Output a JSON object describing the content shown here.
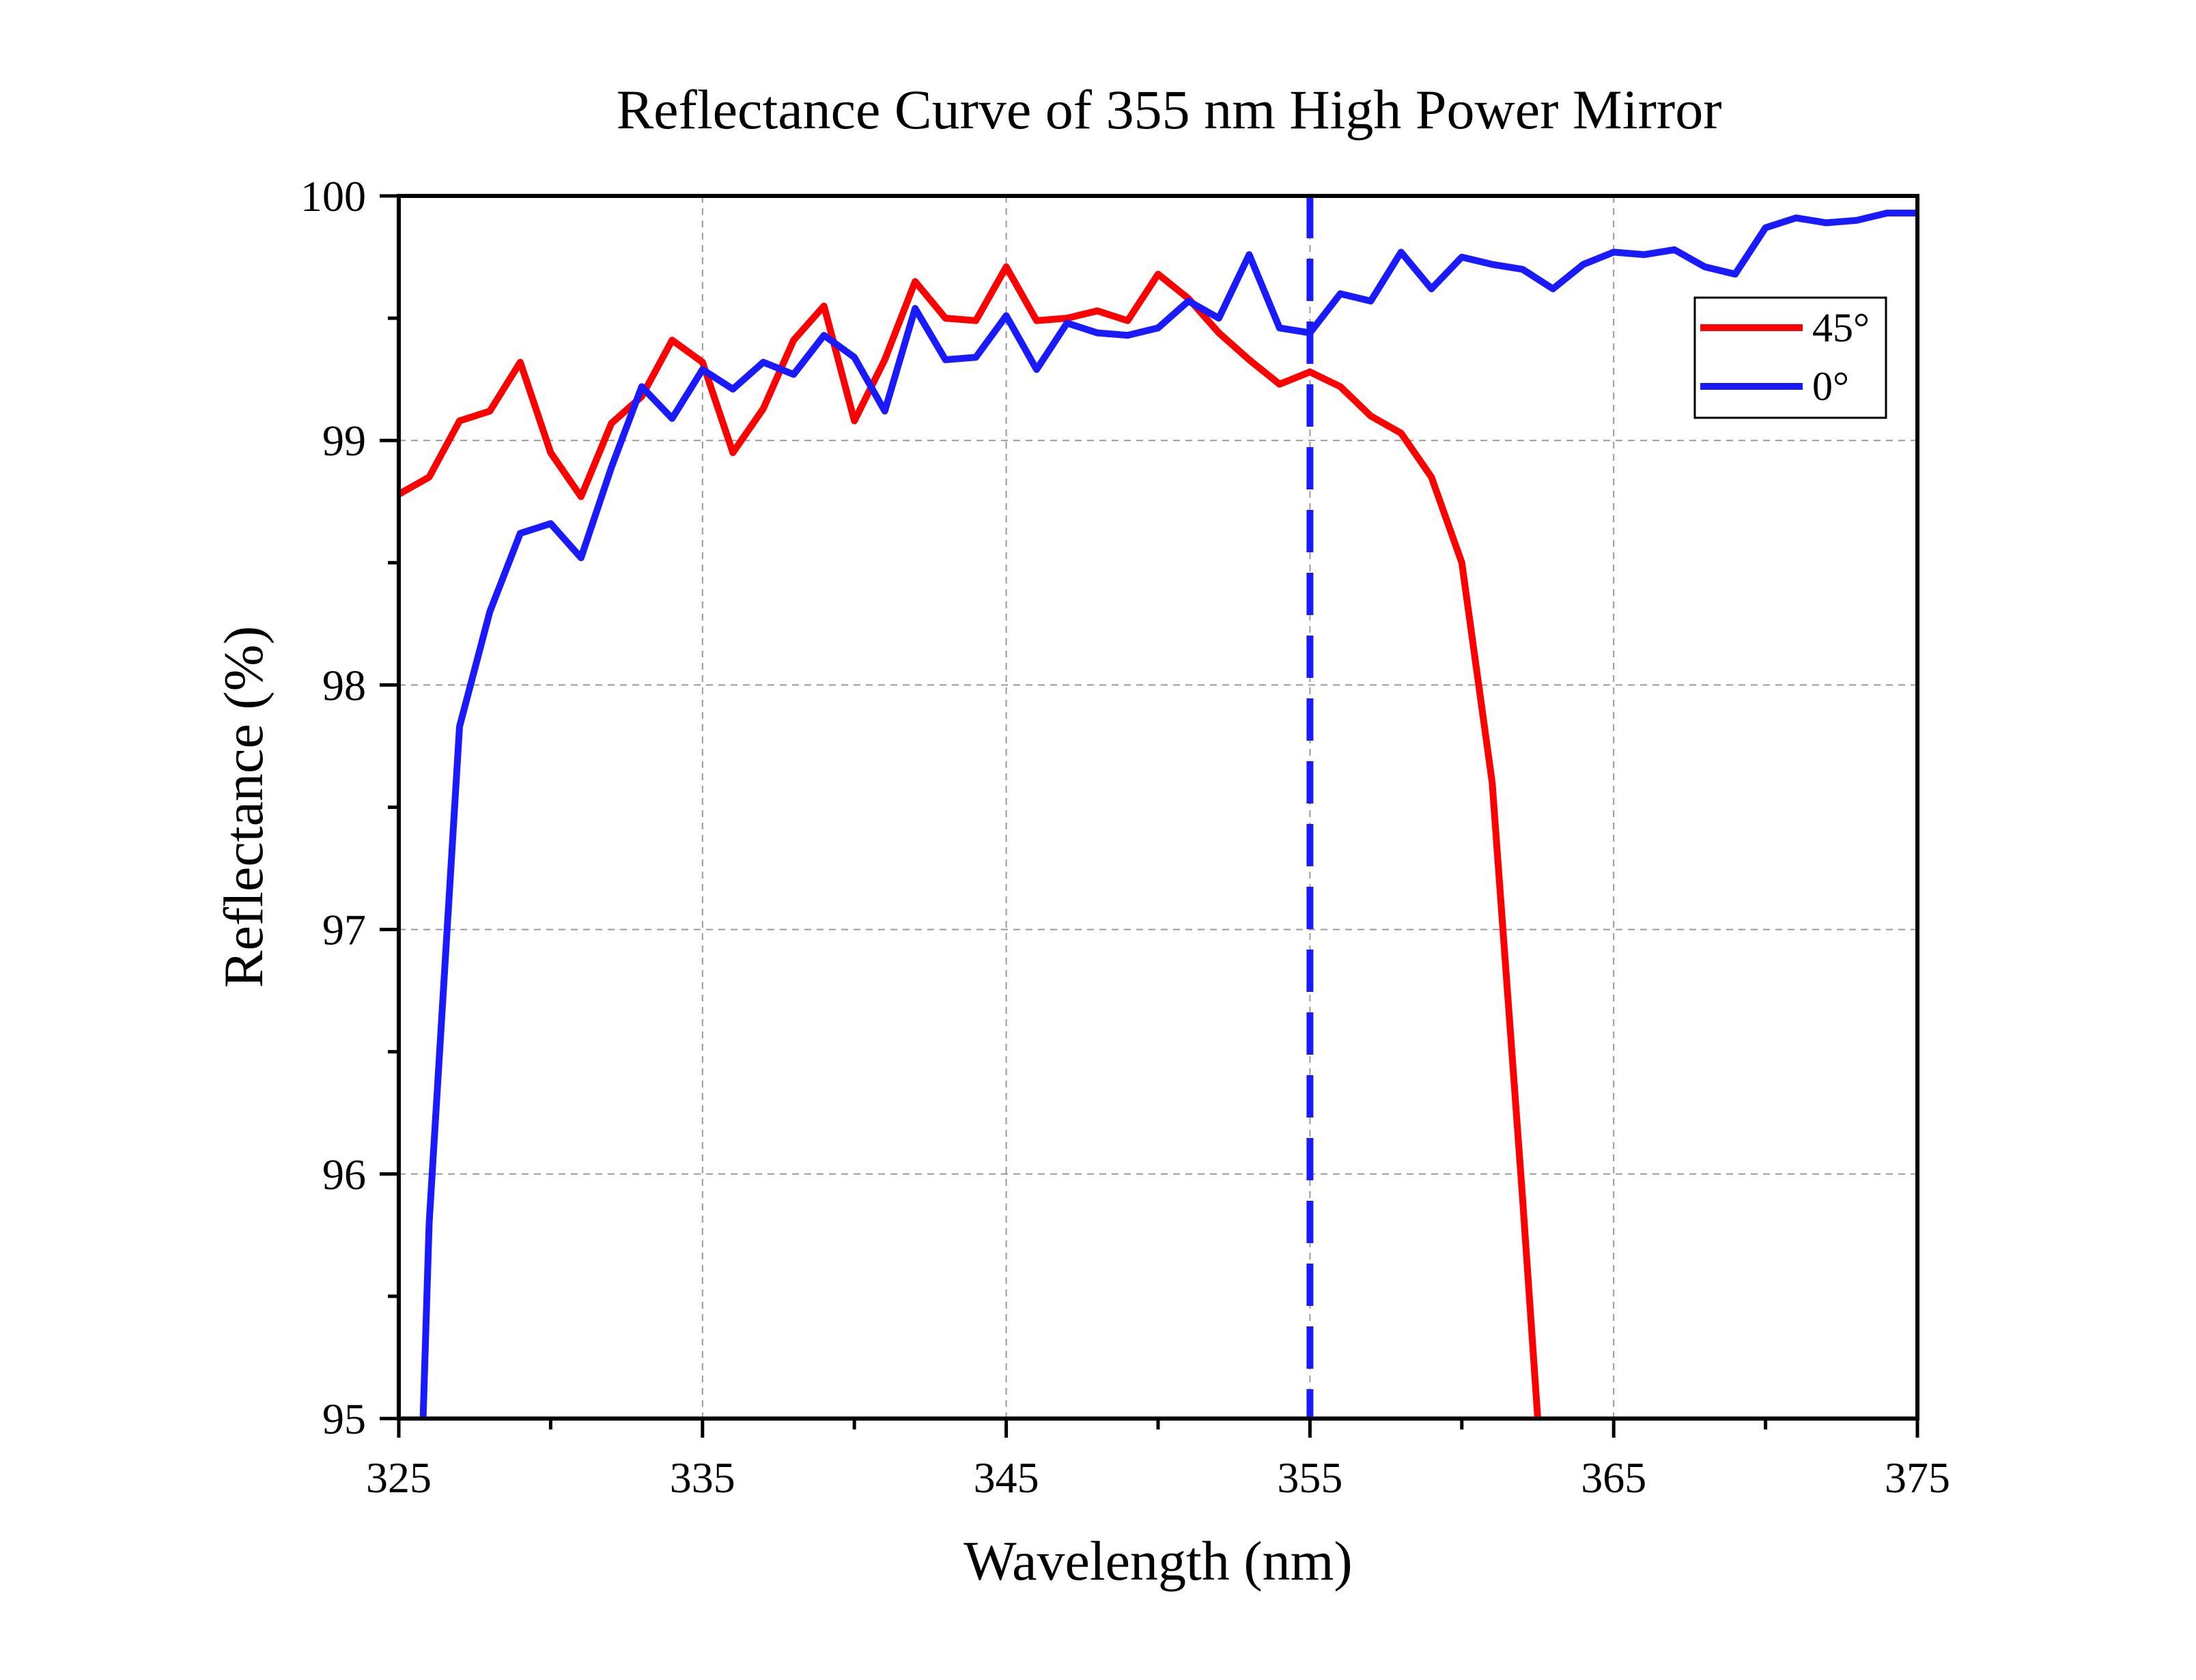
{
  "chart_data": {
    "type": "line",
    "title": "Reflectance Curve of 355 nm High Power Mirror",
    "xlabel": "Wavelength (nm)",
    "ylabel": "Reflectance (%)",
    "xlim": [
      325,
      375
    ],
    "ylim": [
      95,
      100
    ],
    "xticks": [
      325,
      335,
      345,
      355,
      365,
      375
    ],
    "yticks": [
      95,
      96,
      97,
      98,
      99,
      100
    ],
    "grid": true,
    "legend_position": "top-right",
    "reference_line": {
      "x": 355,
      "style": "dashed",
      "color": "#1a1aff"
    },
    "series": [
      {
        "name": "45°",
        "color": "#ff0000",
        "x": [
          325,
          326,
          327,
          328,
          329,
          330,
          331,
          332,
          333,
          334,
          335,
          336,
          337,
          338,
          339,
          340,
          341,
          342,
          343,
          344,
          345,
          346,
          347,
          348,
          349,
          350,
          351,
          352,
          353,
          354,
          355,
          356,
          357,
          358,
          359,
          360,
          361,
          362,
          362.5
        ],
        "y": [
          98.78,
          98.85,
          99.08,
          99.12,
          99.32,
          98.95,
          98.77,
          99.07,
          99.18,
          99.41,
          99.32,
          98.95,
          99.13,
          99.41,
          99.55,
          99.08,
          99.33,
          99.65,
          99.5,
          99.49,
          99.71,
          99.49,
          99.5,
          99.53,
          99.49,
          99.68,
          99.58,
          99.44,
          99.33,
          99.23,
          99.28,
          99.22,
          99.1,
          99.03,
          98.85,
          98.5,
          97.6,
          95.9,
          95.0
        ]
      },
      {
        "name": "0°",
        "color": "#1a1aff",
        "x": [
          325.8,
          326,
          327,
          328,
          329,
          330,
          331,
          332,
          333,
          334,
          335,
          336,
          337,
          338,
          339,
          340,
          341,
          342,
          343,
          344,
          345,
          346,
          347,
          348,
          349,
          350,
          351,
          352,
          353,
          354,
          355,
          356,
          357,
          358,
          359,
          360,
          361,
          362,
          363,
          364,
          365,
          366,
          367,
          368,
          369,
          370,
          371,
          372,
          373,
          374,
          375
        ],
        "y": [
          95.0,
          95.8,
          97.83,
          98.3,
          98.62,
          98.66,
          98.52,
          98.89,
          99.22,
          99.09,
          99.29,
          99.21,
          99.32,
          99.27,
          99.43,
          99.34,
          99.12,
          99.54,
          99.33,
          99.34,
          99.51,
          99.29,
          99.48,
          99.44,
          99.43,
          99.46,
          99.57,
          99.5,
          99.76,
          99.46,
          99.44,
          99.6,
          99.57,
          99.77,
          99.62,
          99.75,
          99.72,
          99.7,
          99.62,
          99.72,
          99.77,
          99.76,
          99.78,
          99.71,
          99.68,
          99.87,
          99.91,
          99.89,
          99.9,
          99.93,
          99.93
        ]
      }
    ]
  }
}
